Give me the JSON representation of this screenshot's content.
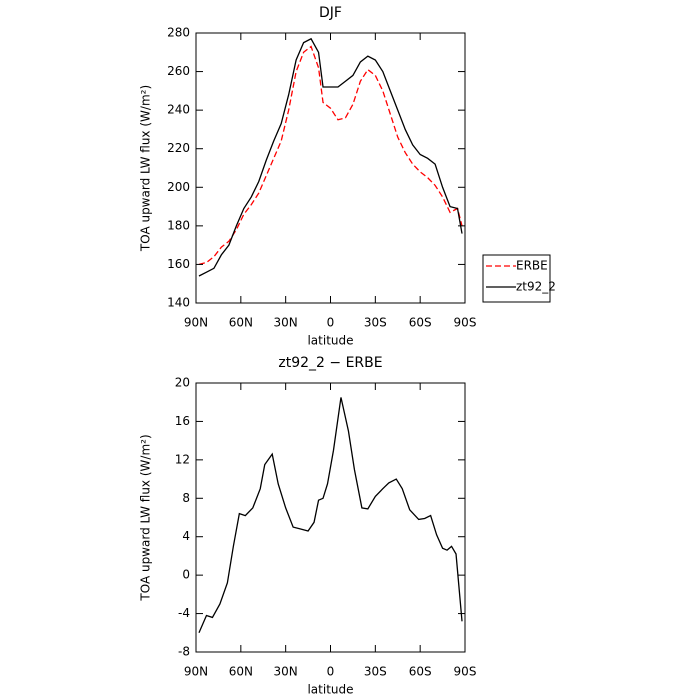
{
  "chart_data": [
    {
      "type": "line",
      "title": "DJF",
      "x_label": "latitude",
      "y_label": "TOA upward LW flux (W/m²)",
      "x": [
        88,
        83,
        78,
        73,
        68,
        63,
        58,
        53,
        48,
        43,
        38,
        33,
        28,
        23,
        18,
        13,
        8,
        5,
        0,
        -5,
        -10,
        -15,
        -20,
        -25,
        -30,
        -35,
        -40,
        -45,
        -50,
        -55,
        -60,
        -65,
        -70,
        -75,
        -80,
        -85,
        -88
      ],
      "series": [
        {
          "name": "ERBE",
          "color": "#ff0000",
          "dashed": true,
          "values": [
            160,
            161,
            164,
            169,
            172,
            178,
            186,
            191,
            197,
            206,
            215,
            224,
            240,
            260,
            270,
            273,
            262,
            244,
            241,
            235,
            236,
            243,
            255,
            261,
            258,
            250,
            238,
            226,
            218,
            212,
            208,
            205,
            201,
            195,
            187,
            189,
            180
          ]
        },
        {
          "name": "zt92_2",
          "color": "#000000",
          "dashed": false,
          "values": [
            154,
            156,
            158,
            165,
            170,
            180,
            189,
            195,
            203,
            214,
            224,
            233,
            248,
            266,
            275,
            277,
            270,
            252,
            252,
            252,
            255,
            258,
            265,
            268,
            266,
            260,
            250,
            240,
            230,
            222,
            217,
            215,
            212,
            200,
            190,
            189,
            176
          ]
        }
      ],
      "xlim": [
        90,
        -90
      ],
      "xticks": [
        {
          "value": 90,
          "label": "90N"
        },
        {
          "value": 60,
          "label": "60N"
        },
        {
          "value": 30,
          "label": "30N"
        },
        0,
        {
          "value": -30,
          "label": "30S"
        },
        {
          "value": -60,
          "label": "60S"
        },
        {
          "value": -90,
          "label": "90S"
        }
      ],
      "ylim": [
        140,
        280
      ],
      "yticks": [
        140,
        160,
        180,
        200,
        220,
        240,
        260,
        280
      ],
      "legend": "right"
    },
    {
      "type": "line",
      "title": "zt92_2 − ERBE",
      "x_label": "latitude",
      "y_label": "TOA upward LW flux (W/m²)",
      "x": [
        88,
        83,
        79,
        74,
        69,
        65,
        61,
        57,
        52,
        47,
        44,
        39,
        35,
        30,
        25,
        20,
        15,
        11,
        8,
        5,
        2,
        -2,
        -7,
        -12,
        -16,
        -21,
        -25,
        -30,
        -35,
        -39,
        -44,
        -48,
        -53,
        -59,
        -63,
        -67,
        -71,
        -75,
        -78,
        -81,
        -84,
        -88
      ],
      "series": [
        {
          "name": "zt92_2 − ERBE",
          "color": "#000000",
          "dashed": false,
          "values": [
            -6,
            -4.2,
            -4.4,
            -3,
            -0.8,
            3,
            6.4,
            6.2,
            7,
            9,
            11.5,
            12.6,
            9.5,
            7,
            5,
            4.8,
            4.6,
            5.5,
            7.8,
            8,
            9.5,
            13,
            18.5,
            15,
            11,
            7,
            6.9,
            8.2,
            9,
            9.6,
            10,
            9,
            6.8,
            5.8,
            5.9,
            6.2,
            4.2,
            2.8,
            2.6,
            3,
            2.2,
            -4.8
          ]
        }
      ],
      "xlim": [
        90,
        -90
      ],
      "xticks": [
        {
          "value": 90,
          "label": "90N"
        },
        {
          "value": 60,
          "label": "60N"
        },
        {
          "value": 30,
          "label": "30N"
        },
        0,
        {
          "value": -30,
          "label": "30S"
        },
        {
          "value": -60,
          "label": "60S"
        },
        {
          "value": -90,
          "label": "90S"
        }
      ],
      "ylim": [
        -8,
        20
      ],
      "yticks": [
        -8,
        -4,
        0,
        4,
        8,
        12,
        16,
        20
      ]
    }
  ]
}
